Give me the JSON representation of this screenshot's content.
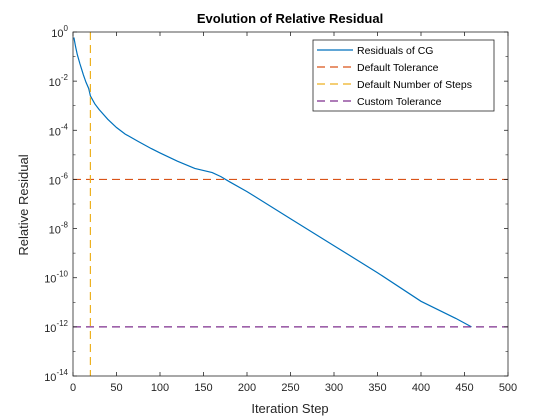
{
  "chart_data": {
    "type": "line",
    "title": "Evolution of Relative Residual",
    "xlabel": "Iteration Step",
    "ylabel": "Relative Residual",
    "xlim": [
      0,
      500
    ],
    "ylim": [
      1e-14,
      1
    ],
    "yscale": "log",
    "xticks": [
      0,
      50,
      100,
      150,
      200,
      250,
      300,
      350,
      400,
      450,
      500
    ],
    "yticks": [
      {
        "value": 1.0,
        "base": "10",
        "exp": "0"
      },
      {
        "value": 0.01,
        "base": "10",
        "exp": "-2"
      },
      {
        "value": 0.0001,
        "base": "10",
        "exp": "-4"
      },
      {
        "value": 1e-06,
        "base": "10",
        "exp": "-6"
      },
      {
        "value": 1e-08,
        "base": "10",
        "exp": "-8"
      },
      {
        "value": 1e-10,
        "base": "10",
        "exp": "-10"
      },
      {
        "value": 1e-12,
        "base": "10",
        "exp": "-12"
      },
      {
        "value": 1e-14,
        "base": "10",
        "exp": "-14"
      }
    ],
    "grid": false,
    "legend_location": "top-right",
    "series": [
      {
        "name": "Residuals of CG",
        "kind": "line",
        "color": "#0072BD",
        "style": "solid",
        "points": [
          [
            1,
            0.6
          ],
          [
            3,
            0.25
          ],
          [
            5,
            0.12
          ],
          [
            8,
            0.05
          ],
          [
            10,
            0.03
          ],
          [
            12,
            0.018
          ],
          [
            15,
            0.009
          ],
          [
            18,
            0.005
          ],
          [
            20,
            0.0025
          ],
          [
            25,
            0.0012
          ],
          [
            30,
            0.0007
          ],
          [
            40,
            0.00028
          ],
          [
            50,
            0.00013
          ],
          [
            60,
            7e-05
          ],
          [
            75,
            3.5e-05
          ],
          [
            90,
            1.8e-05
          ],
          [
            100,
            1.2e-05
          ],
          [
            120,
            5.5e-06
          ],
          [
            140,
            2.8e-06
          ],
          [
            160,
            1.9e-06
          ],
          [
            170,
            1.3e-06
          ],
          [
            180,
            8e-07
          ],
          [
            200,
            3.2e-07
          ],
          [
            250,
            2.5e-08
          ],
          [
            300,
            2e-09
          ],
          [
            350,
            1.6e-10
          ],
          [
            400,
            1.1e-11
          ],
          [
            440,
            2.2e-12
          ],
          [
            458,
            1e-12
          ]
        ]
      },
      {
        "name": "Default Tolerance",
        "kind": "hline",
        "y": 1e-06,
        "color": "#D95319",
        "style": "dashed"
      },
      {
        "name": "Default Number of Steps",
        "kind": "vline",
        "x": 20,
        "color": "#EDB120",
        "style": "dashed"
      },
      {
        "name": "Custom Tolerance",
        "kind": "hline",
        "y": 1e-12,
        "color": "#7E2F8E",
        "style": "dashed"
      }
    ]
  }
}
